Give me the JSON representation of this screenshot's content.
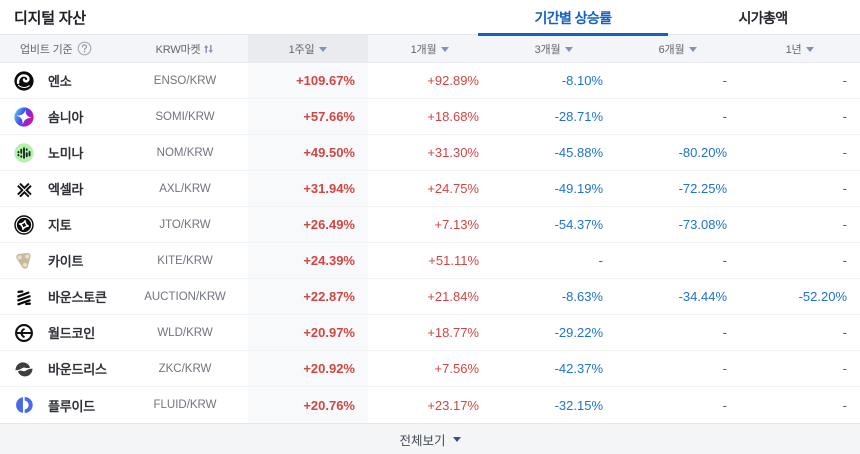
{
  "page_title": "디지털 자산",
  "tabs": [
    {
      "label": "기간별 상승률",
      "active": true
    },
    {
      "label": "시가총액",
      "active": false
    }
  ],
  "table": {
    "header": {
      "basis_label": "업비트 기준",
      "basis_help_icon": "question-circle-icon",
      "market_label": "KRW마켓",
      "market_sort_icon": "sort-arrows-icon",
      "periods": [
        {
          "label": "1주일",
          "selected": true
        },
        {
          "label": "1개월",
          "selected": false
        },
        {
          "label": "3개월",
          "selected": false
        },
        {
          "label": "6개월",
          "selected": false
        },
        {
          "label": "1년",
          "selected": false
        }
      ]
    },
    "rows": [
      {
        "name": "엔소",
        "pair": "ENSO/KRW",
        "icon": "enso",
        "values": [
          "+109.67%",
          "+92.89%",
          "-8.10%",
          "-",
          "-"
        ]
      },
      {
        "name": "솜니아",
        "pair": "SOMI/KRW",
        "icon": "somi",
        "values": [
          "+57.66%",
          "+18.68%",
          "-28.71%",
          "-",
          "-"
        ]
      },
      {
        "name": "노미나",
        "pair": "NOM/KRW",
        "icon": "nom",
        "values": [
          "+49.50%",
          "+31.30%",
          "-45.88%",
          "-80.20%",
          "-"
        ]
      },
      {
        "name": "엑셀라",
        "pair": "AXL/KRW",
        "icon": "axl",
        "values": [
          "+31.94%",
          "+24.75%",
          "-49.19%",
          "-72.25%",
          "-"
        ]
      },
      {
        "name": "지토",
        "pair": "JTO/KRW",
        "icon": "jto",
        "values": [
          "+26.49%",
          "+7.13%",
          "-54.37%",
          "-73.08%",
          "-"
        ]
      },
      {
        "name": "카이트",
        "pair": "KITE/KRW",
        "icon": "kite",
        "values": [
          "+24.39%",
          "+51.11%",
          "-",
          "-",
          "-"
        ]
      },
      {
        "name": "바운스토큰",
        "pair": "AUCTION/KRW",
        "icon": "auction",
        "values": [
          "+22.87%",
          "+21.84%",
          "-8.63%",
          "-34.44%",
          "-52.20%"
        ]
      },
      {
        "name": "월드코인",
        "pair": "WLD/KRW",
        "icon": "wld",
        "values": [
          "+20.97%",
          "+18.77%",
          "-29.22%",
          "-",
          "-"
        ]
      },
      {
        "name": "바운드리스",
        "pair": "ZKC/KRW",
        "icon": "zkc",
        "values": [
          "+20.92%",
          "+7.56%",
          "-42.37%",
          "-",
          "-"
        ]
      },
      {
        "name": "플루이드",
        "pair": "FLUID/KRW",
        "icon": "fluid",
        "values": [
          "+20.76%",
          "+23.17%",
          "-32.15%",
          "-",
          "-"
        ]
      }
    ]
  },
  "footer": {
    "view_all_label": "전체보기"
  },
  "colors": {
    "rise": "#d04643",
    "fall": "#1f72d2",
    "tab_active": "#1261c4",
    "header_bg": "#f4f5f8",
    "selected_col_header_bg": "#e9ebef",
    "selected_col_cell_bg": "#f8f9fb",
    "footer_bg": "#f4f5f7"
  }
}
